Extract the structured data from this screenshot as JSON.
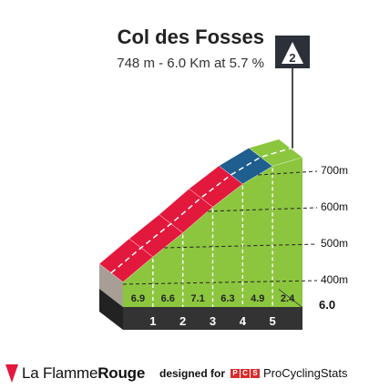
{
  "header": {
    "title": "Col des Fosses",
    "subtitle": "748 m - 6.0 Km at 5.7 %",
    "category_badge": "2"
  },
  "footer": {
    "brand_part1": "La Flamme",
    "brand_part2": "Rouge",
    "designed_for": "designed for",
    "pcs_letters": [
      "P",
      "C",
      "S"
    ],
    "pcs_name": "ProCyclingStats"
  },
  "colors": {
    "green": "#8cc63f",
    "red": "#e3183d",
    "blue": "#1f5f8f",
    "gray": "#a79f95",
    "dark": "#333333"
  },
  "chart_data": {
    "type": "area",
    "title": "Col des Fosses",
    "subtitle": "748 m - 6.0 Km at 5.7 %",
    "x": [
      0,
      1,
      2,
      3,
      4,
      5,
      6.0
    ],
    "altitude": [
      406,
      475,
      541,
      612,
      675,
      724,
      748
    ],
    "segment_gradients": [
      6.9,
      6.6,
      7.1,
      6.3,
      4.9,
      2.4
    ],
    "segment_colors": [
      "red",
      "red",
      "red",
      "red",
      "blue",
      "green"
    ],
    "km_labels": [
      "1",
      "2",
      "3",
      "4",
      "5"
    ],
    "end_label": "6.0",
    "y_ticks": [
      400,
      500,
      600,
      700
    ],
    "y_tick_labels": [
      "400m",
      "500m",
      "600m",
      "700m"
    ],
    "y_range": [
      300,
      760
    ],
    "x_range": [
      0,
      6.0
    ]
  }
}
